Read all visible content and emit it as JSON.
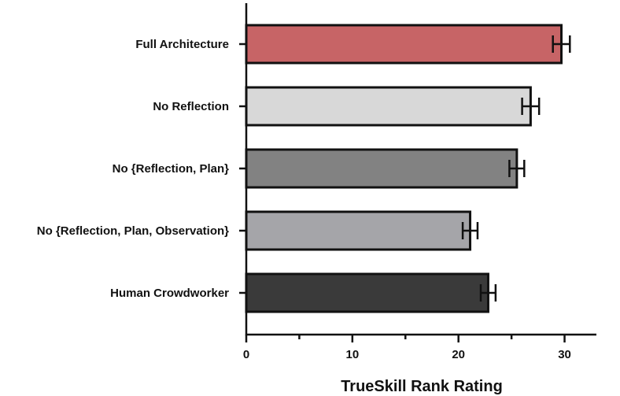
{
  "chart_data": {
    "type": "bar",
    "orientation": "horizontal",
    "categories": [
      "Full Architecture",
      "No Reflection",
      "No {Reflection, Plan}",
      "No {Reflection, Plan, Observation}",
      "Human Crowdworker"
    ],
    "values": [
      29.7,
      26.8,
      25.5,
      21.1,
      22.8
    ],
    "error": [
      0.8,
      0.8,
      0.7,
      0.7,
      0.7
    ],
    "colors": [
      "#c76466",
      "#d8d8d8",
      "#828282",
      "#a5a5a9",
      "#3a3a3a"
    ],
    "title": "",
    "xlabel": "TrueSkill Rank Rating",
    "ylabel": "",
    "xlim": [
      0,
      33
    ],
    "xticks": [
      0,
      10,
      20,
      30
    ],
    "minor_xticks": [
      5,
      15,
      25
    ],
    "grid": false,
    "legend": "none"
  }
}
